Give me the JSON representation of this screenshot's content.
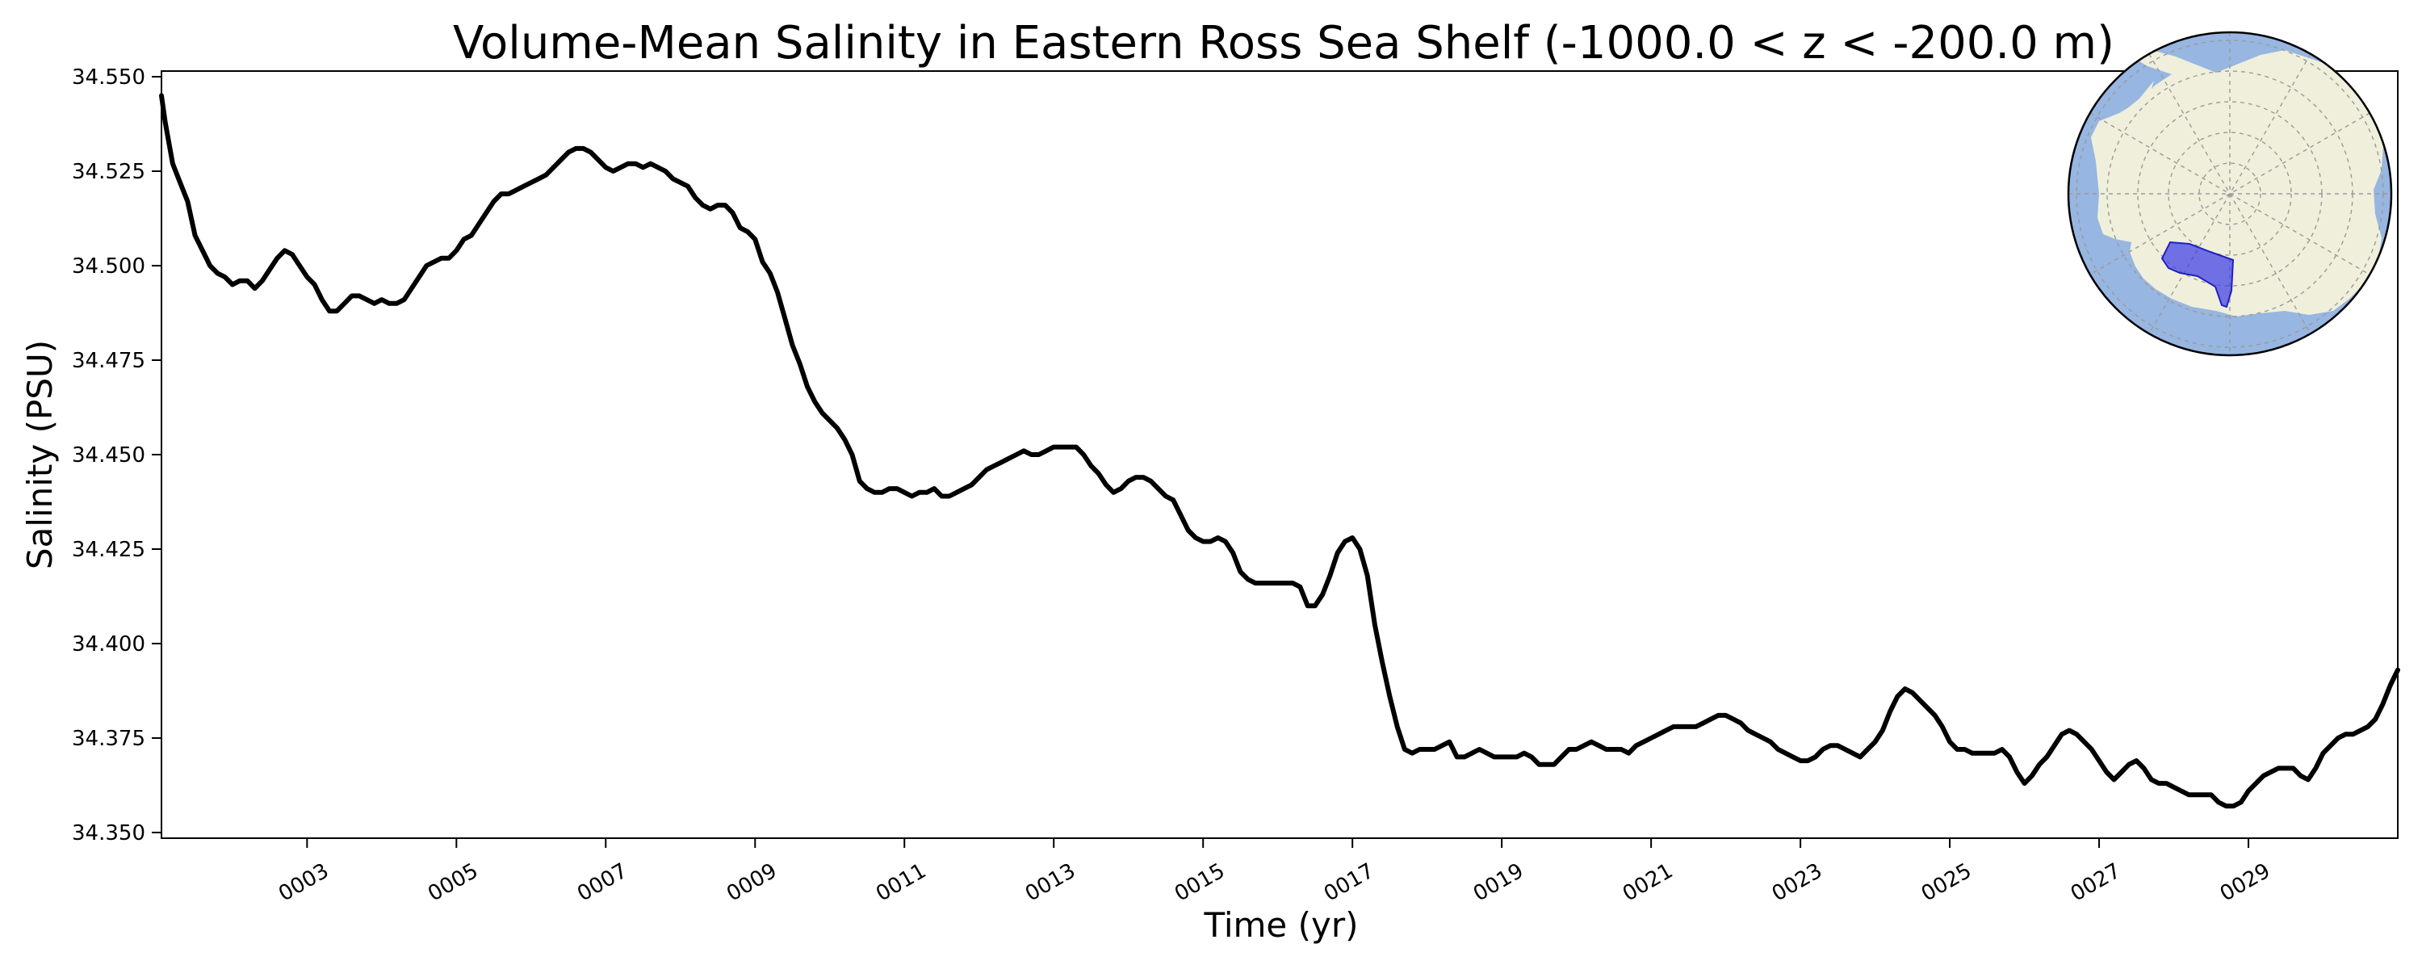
{
  "chart_data": {
    "type": "line",
    "title": "Volume-Mean Salinity in Eastern Ross Sea Shelf (-1000.0 < z < -200.0 m)",
    "xlabel": "Time (yr)",
    "ylabel": "Salinity (PSU)",
    "xlim": [
      1.05,
      31.0
    ],
    "ylim": [
      34.3485,
      34.5515
    ],
    "x_ticks": [
      3,
      5,
      7,
      9,
      11,
      13,
      15,
      17,
      19,
      21,
      23,
      25,
      27,
      29
    ],
    "x_tick_labels": [
      "0003",
      "0005",
      "0007",
      "0009",
      "0011",
      "0013",
      "0015",
      "0017",
      "0019",
      "0021",
      "0023",
      "0025",
      "0027",
      "0029"
    ],
    "y_ticks": [
      34.35,
      34.375,
      34.4,
      34.425,
      34.45,
      34.475,
      34.5,
      34.525,
      34.55
    ],
    "y_tick_labels": [
      "34.350",
      "34.375",
      "34.400",
      "34.425",
      "34.450",
      "34.475",
      "34.500",
      "34.525",
      "34.550"
    ],
    "grid": false,
    "line_color": "#000000",
    "series": [
      {
        "x": [
          1.05,
          1.1,
          1.2,
          1.3,
          1.4,
          1.5,
          1.6,
          1.7,
          1.8,
          1.9,
          2.0,
          2.1,
          2.2,
          2.3,
          2.4,
          2.5,
          2.6,
          2.7,
          2.8,
          2.9,
          3.0,
          3.1,
          3.2,
          3.3,
          3.4,
          3.5,
          3.6,
          3.7,
          3.8,
          3.9,
          4.0,
          4.1,
          4.2,
          4.3,
          4.4,
          4.5,
          4.6,
          4.7,
          4.8,
          4.9,
          5.0,
          5.1,
          5.2,
          5.3,
          5.4,
          5.5,
          5.6,
          5.7,
          5.8,
          5.9,
          6.0,
          6.1,
          6.2,
          6.3,
          6.4,
          6.5,
          6.6,
          6.7,
          6.8,
          6.9,
          7.0,
          7.1,
          7.2,
          7.3,
          7.4,
          7.5,
          7.6,
          7.7,
          7.8,
          7.9,
          8.0,
          8.1,
          8.2,
          8.3,
          8.4,
          8.5,
          8.6,
          8.7,
          8.8,
          8.9,
          9.0,
          9.1,
          9.2,
          9.3,
          9.4,
          9.5,
          9.6,
          9.7,
          9.8,
          9.9,
          10.0,
          10.1,
          10.2,
          10.3,
          10.4,
          10.5,
          10.6,
          10.7,
          10.8,
          10.9,
          11.0,
          11.1,
          11.2,
          11.3,
          11.4,
          11.5,
          11.6,
          11.7,
          11.8,
          11.9,
          12.0,
          12.1,
          12.2,
          12.3,
          12.4,
          12.5,
          12.6,
          12.7,
          12.8,
          12.9,
          13.0,
          13.1,
          13.2,
          13.3,
          13.4,
          13.5,
          13.6,
          13.7,
          13.8,
          13.9,
          14.0,
          14.1,
          14.2,
          14.3,
          14.4,
          14.5,
          14.6,
          14.7,
          14.8,
          14.9,
          15.0,
          15.1,
          15.2,
          15.3,
          15.4,
          15.5,
          15.6,
          15.7,
          15.8,
          15.9,
          16.0,
          16.1,
          16.2,
          16.3,
          16.4,
          16.5,
          16.6,
          16.7,
          16.8,
          16.9,
          17.0,
          17.1,
          17.2,
          17.3,
          17.4,
          17.5,
          17.6,
          17.7,
          17.8,
          17.9,
          18.0,
          18.1,
          18.2,
          18.3,
          18.4,
          18.5,
          18.6,
          18.7,
          18.8,
          18.9,
          19.0,
          19.1,
          19.2,
          19.3,
          19.4,
          19.5,
          19.6,
          19.7,
          19.8,
          19.9,
          20.0,
          20.1,
          20.2,
          20.3,
          20.4,
          20.5,
          20.6,
          20.7,
          20.8,
          20.9,
          21.0,
          21.1,
          21.2,
          21.3,
          21.4,
          21.5,
          21.6,
          21.7,
          21.8,
          21.9,
          22.0,
          22.1,
          22.2,
          22.3,
          22.4,
          22.5,
          22.6,
          22.7,
          22.8,
          22.9,
          23.0,
          23.1,
          23.2,
          23.3,
          23.4,
          23.5,
          23.6,
          23.7,
          23.8,
          23.9,
          24.0,
          24.1,
          24.2,
          24.3,
          24.4,
          24.5,
          24.6,
          24.7,
          24.8,
          24.9,
          25.0,
          25.1,
          25.2,
          25.3,
          25.4,
          25.5,
          25.6,
          25.7,
          25.8,
          25.9,
          26.0,
          26.1,
          26.2,
          26.3,
          26.4,
          26.5,
          26.6,
          26.7,
          26.8,
          26.9,
          27.0,
          27.1,
          27.2,
          27.3,
          27.4,
          27.5,
          27.6,
          27.7,
          27.8,
          27.9,
          28.0,
          28.1,
          28.2,
          28.3,
          28.4,
          28.5,
          28.6,
          28.7,
          28.8,
          28.9,
          29.0,
          29.1,
          29.2,
          29.3,
          29.4,
          29.5,
          29.6,
          29.7,
          29.8,
          29.9,
          30.0,
          30.1,
          30.2,
          30.3,
          30.4,
          30.5,
          30.6,
          30.7,
          30.8,
          30.9,
          31.0
        ],
        "values": [
          34.545,
          34.538,
          34.527,
          34.522,
          34.517,
          34.508,
          34.504,
          34.5,
          34.498,
          34.497,
          34.495,
          34.496,
          34.496,
          34.494,
          34.496,
          34.499,
          34.502,
          34.504,
          34.503,
          34.5,
          34.497,
          34.495,
          34.491,
          34.488,
          34.488,
          34.49,
          34.492,
          34.492,
          34.491,
          34.49,
          34.491,
          34.49,
          34.49,
          34.491,
          34.494,
          34.497,
          34.5,
          34.501,
          34.502,
          34.502,
          34.504,
          34.507,
          34.508,
          34.511,
          34.514,
          34.517,
          34.519,
          34.519,
          34.52,
          34.521,
          34.522,
          34.523,
          34.524,
          34.526,
          34.528,
          34.53,
          34.531,
          34.531,
          34.53,
          34.528,
          34.526,
          34.525,
          34.526,
          34.527,
          34.527,
          34.526,
          34.527,
          34.526,
          34.525,
          34.523,
          34.522,
          34.521,
          34.518,
          34.516,
          34.515,
          34.516,
          34.516,
          34.514,
          34.51,
          34.509,
          34.507,
          34.501,
          34.498,
          34.493,
          34.486,
          34.479,
          34.474,
          34.468,
          34.464,
          34.461,
          34.459,
          34.457,
          34.454,
          34.45,
          34.443,
          34.441,
          34.44,
          34.44,
          34.441,
          34.441,
          34.44,
          34.439,
          34.44,
          34.44,
          34.441,
          34.439,
          34.439,
          34.44,
          34.441,
          34.442,
          34.444,
          34.446,
          34.447,
          34.448,
          34.449,
          34.45,
          34.451,
          34.45,
          34.45,
          34.451,
          34.452,
          34.452,
          34.452,
          34.452,
          34.45,
          34.447,
          34.445,
          34.442,
          34.44,
          34.441,
          34.443,
          34.444,
          34.444,
          34.443,
          34.441,
          34.439,
          34.438,
          34.434,
          34.43,
          34.428,
          34.427,
          34.427,
          34.428,
          34.427,
          34.424,
          34.419,
          34.417,
          34.416,
          34.416,
          34.416,
          34.416,
          34.416,
          34.416,
          34.415,
          34.41,
          34.41,
          34.413,
          34.418,
          34.424,
          34.427,
          34.428,
          34.425,
          34.418,
          34.405,
          34.395,
          34.386,
          34.378,
          34.372,
          34.371,
          34.372,
          34.372,
          34.372,
          34.373,
          34.374,
          34.37,
          34.37,
          34.371,
          34.372,
          34.371,
          34.37,
          34.37,
          34.37,
          34.37,
          34.371,
          34.37,
          34.368,
          34.368,
          34.368,
          34.37,
          34.372,
          34.372,
          34.373,
          34.374,
          34.373,
          34.372,
          34.372,
          34.372,
          34.371,
          34.373,
          34.374,
          34.375,
          34.376,
          34.377,
          34.378,
          34.378,
          34.378,
          34.378,
          34.379,
          34.38,
          34.381,
          34.381,
          34.38,
          34.379,
          34.377,
          34.376,
          34.375,
          34.374,
          34.372,
          34.371,
          34.37,
          34.369,
          34.369,
          34.37,
          34.372,
          34.373,
          34.373,
          34.372,
          34.371,
          34.37,
          34.372,
          34.374,
          34.377,
          34.382,
          34.386,
          34.388,
          34.387,
          34.385,
          34.383,
          34.381,
          34.378,
          34.374,
          34.372,
          34.372,
          34.371,
          34.371,
          34.371,
          34.371,
          34.372,
          34.37,
          34.366,
          34.363,
          34.365,
          34.368,
          34.37,
          34.373,
          34.376,
          34.377,
          34.376,
          34.374,
          34.372,
          34.369,
          34.366,
          34.364,
          34.366,
          34.368,
          34.369,
          34.367,
          34.364,
          34.363,
          34.363,
          34.362,
          34.361,
          34.36,
          34.36,
          34.36,
          34.36,
          34.358,
          34.357,
          34.357,
          34.358,
          34.361,
          34.363,
          34.365,
          34.366,
          34.367,
          34.367,
          34.367,
          34.365,
          34.364,
          34.367,
          34.371,
          34.373,
          34.375,
          34.376,
          34.376,
          34.377,
          34.378,
          34.38,
          34.384,
          34.389,
          34.393
        ]
      }
    ]
  },
  "inset_map": {
    "ocean_color": "#97b6e1",
    "land_color": "#efefdb",
    "region_color": "#3a3ae8",
    "gridline_color": "#9a9a9a"
  }
}
